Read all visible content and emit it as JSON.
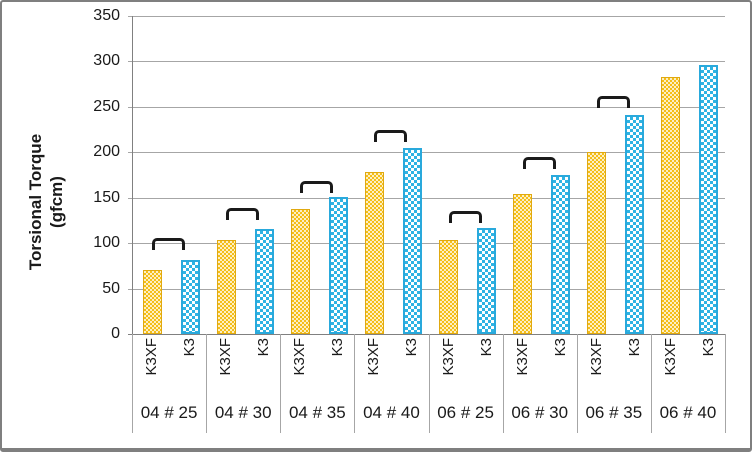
{
  "chart_data": {
    "type": "bar",
    "title": "",
    "ylabel": "Torsional Torque (gfcm)",
    "ylabel_lines": [
      "Torsional Torque",
      "(gfcm)"
    ],
    "ylim": [
      0,
      350
    ],
    "ytick_step": 50,
    "yticks": [
      0,
      50,
      100,
      150,
      200,
      250,
      300,
      350
    ],
    "grid": true,
    "legend_position": "none",
    "categories": [
      "04 # 25",
      "04 # 30",
      "04 # 35",
      "04 # 40",
      "06 # 25",
      "06 # 30",
      "06 # 35",
      "06 # 40"
    ],
    "bar_labels_per_group": [
      "K3XF",
      "K3"
    ],
    "series": [
      {
        "name": "K3XF",
        "pattern": "dots",
        "color": "#F5BE18",
        "values": [
          70,
          104,
          138,
          178,
          104,
          154,
          200,
          283
        ]
      },
      {
        "name": "K3",
        "pattern": "checker",
        "color": "#2EB3E3",
        "values": [
          81,
          116,
          151,
          205,
          117,
          175,
          241,
          296
        ]
      }
    ],
    "comparison_brackets": {
      "note": "black staple-shaped brackets linking each K3XF/K3 pair; none over last group",
      "levels": [
        106,
        139,
        168,
        225,
        135,
        195,
        262,
        null
      ]
    }
  },
  "colors": {
    "k3xf_fill": "#F5BE18",
    "k3xf_border": "#E0A911",
    "k3_fill": "#2EB3E3",
    "k3_border": "#29A9DC",
    "gridline": "#A6A6A6",
    "axis": "#808080",
    "bracket": "#1A1A1A",
    "frame_border": "#7F7F7F",
    "text": "#1A1A1A",
    "background": "#FFFFFF"
  }
}
